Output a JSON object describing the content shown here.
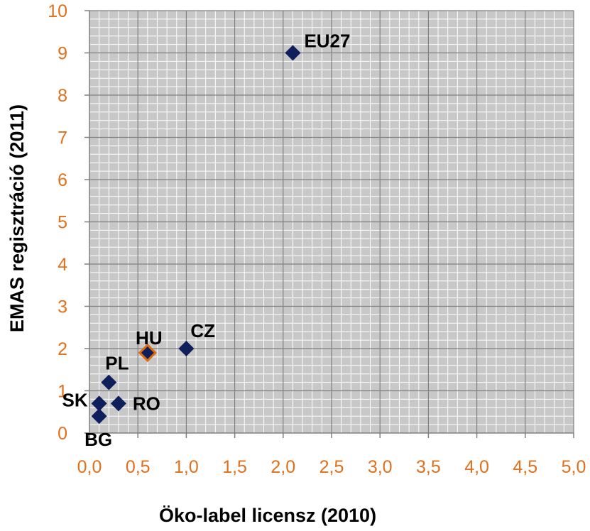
{
  "chart_data": {
    "type": "scatter",
    "title": "",
    "xlabel": "Öko-label licensz (2010)",
    "ylabel": "EMAS regisztráció (2011)",
    "xlim": [
      0,
      5
    ],
    "ylim": [
      0,
      10
    ],
    "grid": true,
    "x_ticks": [
      "0,0",
      "0,5",
      "1,0",
      "1,5",
      "2,0",
      "2,5",
      "3,0",
      "3,5",
      "4,0",
      "4,5",
      "5,0"
    ],
    "y_ticks": [
      "0",
      "1",
      "2",
      "3",
      "4",
      "5",
      "6",
      "7",
      "8",
      "9",
      "10"
    ],
    "points": [
      {
        "label": "EU27",
        "x": 2.1,
        "y": 9.0,
        "highlight": false
      },
      {
        "label": "CZ",
        "x": 1.0,
        "y": 2.0,
        "highlight": false
      },
      {
        "label": "HU",
        "x": 0.6,
        "y": 1.9,
        "highlight": true
      },
      {
        "label": "PL",
        "x": 0.2,
        "y": 1.2,
        "highlight": false
      },
      {
        "label": "SK",
        "x": 0.1,
        "y": 0.7,
        "highlight": false
      },
      {
        "label": "RO",
        "x": 0.3,
        "y": 0.7,
        "highlight": false
      },
      {
        "label": "BG",
        "x": 0.1,
        "y": 0.4,
        "highlight": false
      }
    ],
    "colors": {
      "marker": "#0f1f5c",
      "highlight_stroke": "#e06a10",
      "tick_label": "#e0701c",
      "plot_bg": "#c8c8c8",
      "grid_minor": "#ffffff",
      "grid_major": "#808080"
    }
  }
}
